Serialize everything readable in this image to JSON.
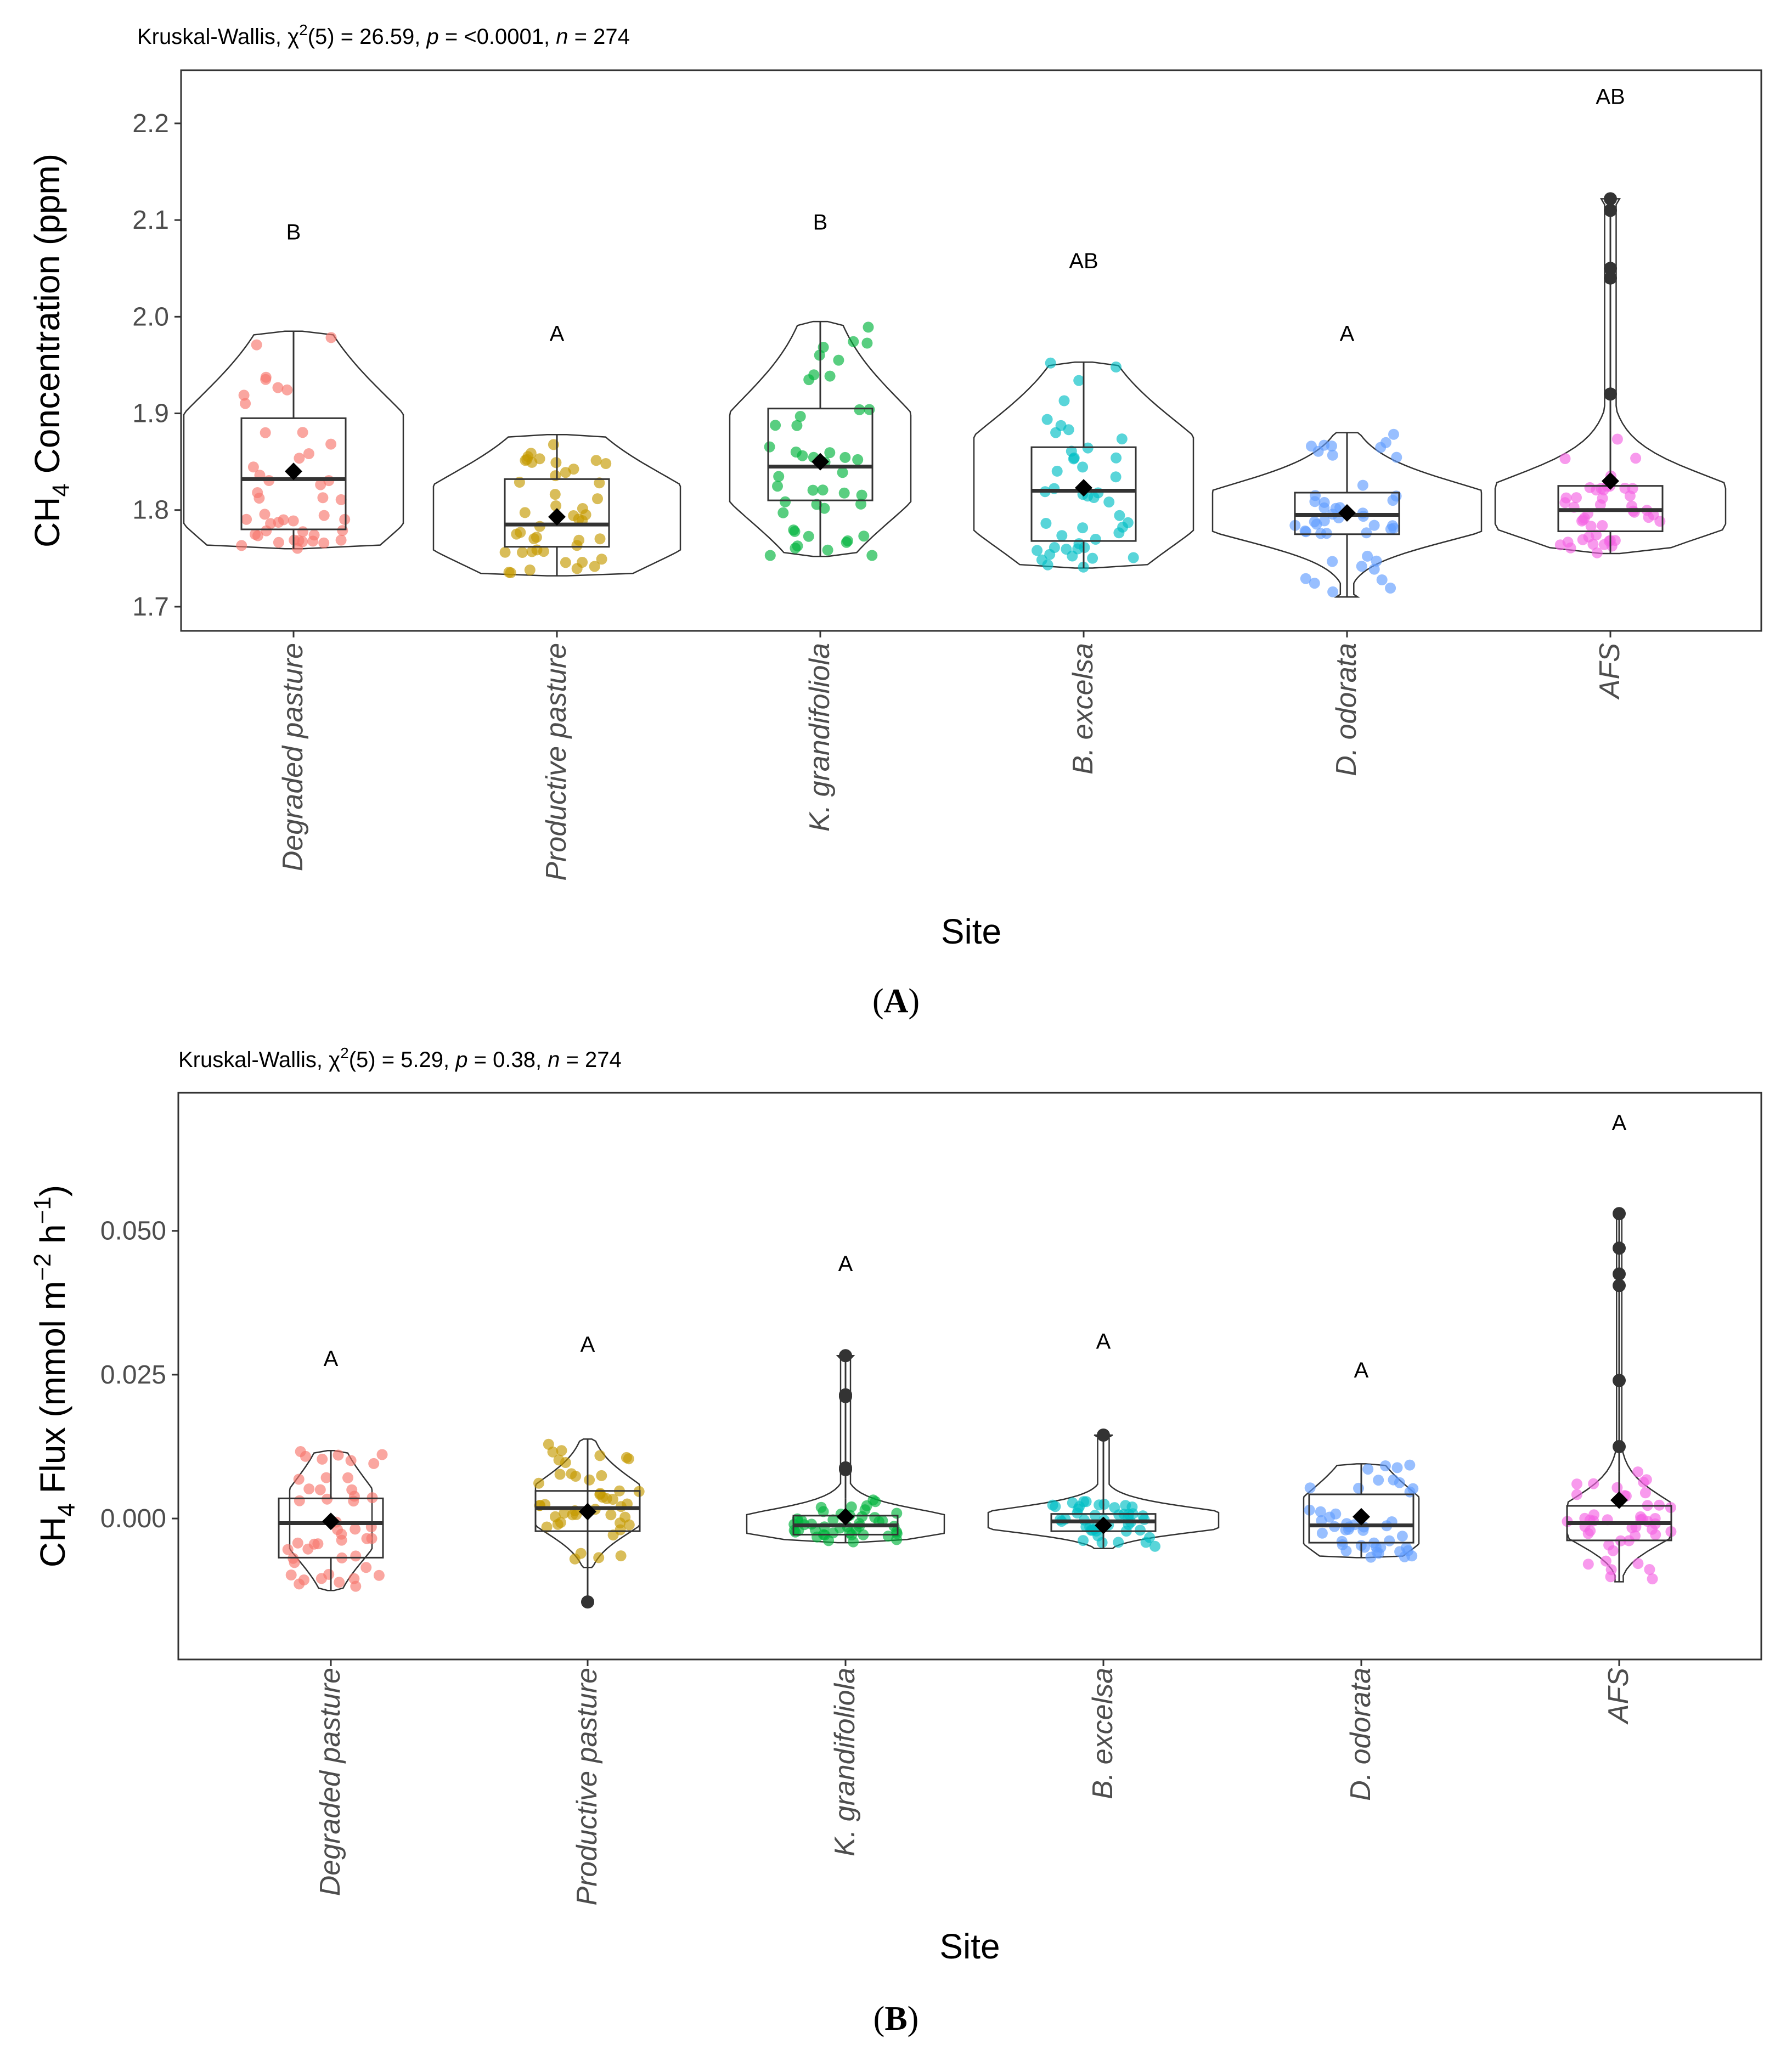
{
  "chart_data": [
    {
      "type": "violin-box",
      "panel_label": "A",
      "stats_line": {
        "prefix": "Kruskal-Wallis, χ",
        "sup": "2",
        "mid": "(5) = 26.59, ",
        "p": "p",
        "p_val": " = <0.0001, ",
        "n": "n",
        "n_val": " = 274"
      },
      "ylabel": {
        "pre": "CH",
        "sub": "4",
        "post": " Concentration (ppm)"
      },
      "xlabel": "Site",
      "ylim": [
        1.675,
        2.255
      ],
      "yticks": [
        1.7,
        1.8,
        1.9,
        2.0,
        2.1,
        2.2
      ],
      "ytick_labels": [
        "1.7",
        "1.8",
        "1.9",
        "2.0",
        "2.1",
        "2.2"
      ],
      "categories": [
        "Degraded pasture",
        "Productive pasture",
        "K. grandifoliola",
        "B. excelsa",
        "D. odorata",
        "AFS"
      ],
      "colors": [
        "#F8766D",
        "#C49A00",
        "#00B33C",
        "#00BFC4",
        "#619CFF",
        "#F564E3"
      ],
      "groups": [
        {
          "letter": "B",
          "letter_y": 2.08,
          "min": 1.76,
          "q1": 1.78,
          "median": 1.832,
          "q3": 1.895,
          "max": 1.985,
          "mean": 1.84,
          "outliers": []
        },
        {
          "letter": "A",
          "letter_y": 1.975,
          "min": 1.732,
          "q1": 1.762,
          "median": 1.785,
          "q3": 1.832,
          "max": 1.878,
          "mean": 1.793,
          "outliers": []
        },
        {
          "letter": "B",
          "letter_y": 2.09,
          "min": 1.752,
          "q1": 1.81,
          "median": 1.845,
          "q3": 1.905,
          "max": 1.995,
          "mean": 1.85,
          "outliers": []
        },
        {
          "letter": "AB",
          "letter_y": 2.05,
          "min": 1.74,
          "q1": 1.768,
          "median": 1.82,
          "q3": 1.865,
          "max": 1.953,
          "mean": 1.823,
          "outliers": []
        },
        {
          "letter": "A",
          "letter_y": 1.975,
          "min": 1.71,
          "q1": 1.775,
          "median": 1.795,
          "q3": 1.818,
          "max": 1.88,
          "mean": 1.797,
          "outliers": []
        },
        {
          "letter": "AB",
          "letter_y": 2.22,
          "min": 1.755,
          "q1": 1.778,
          "median": 1.8,
          "q3": 1.825,
          "max": 1.882,
          "mean": 1.83,
          "outliers": [
            2.122,
            2.11,
            2.05,
            2.04,
            1.92
          ]
        }
      ]
    },
    {
      "type": "violin-box",
      "panel_label": "B",
      "stats_line": {
        "prefix": "Kruskal-Wallis, χ",
        "sup": "2",
        "mid": "(5) = 5.29, ",
        "p": "p",
        "p_val": " = 0.38, ",
        "n": "n",
        "n_val": " = 274"
      },
      "ylabel": {
        "pre": "CH",
        "sub": "4",
        "post": " Flux (mmol m",
        "sup1": "−2",
        "mid": " h",
        "sup2": "−1",
        "end": ")"
      },
      "xlabel": "Site",
      "ylim": [
        -0.0245,
        0.074
      ],
      "yticks": [
        0.0,
        0.025,
        0.05
      ],
      "ytick_labels": [
        "0.000",
        "0.025",
        "0.050"
      ],
      "categories": [
        "Degraded pasture",
        "Productive pasture",
        "K. grandifoliola",
        "B. excelsa",
        "D. odorata",
        "AFS"
      ],
      "colors": [
        "#F8766D",
        "#C49A00",
        "#00B33C",
        "#00BFC4",
        "#619CFF",
        "#F564E3"
      ],
      "groups": [
        {
          "letter": "A",
          "letter_y": 0.0265,
          "min": -0.0125,
          "q1": -0.0068,
          "median": -0.0008,
          "q3": 0.0035,
          "max": 0.0118,
          "mean": -0.0005,
          "outliers": []
        },
        {
          "letter": "A",
          "letter_y": 0.029,
          "min": -0.0085,
          "q1": -0.0022,
          "median": 0.0018,
          "q3": 0.0048,
          "max": 0.0138,
          "mean": 0.0012,
          "outliers": [
            -0.0145
          ]
        },
        {
          "letter": "A",
          "letter_y": 0.043,
          "min": -0.0042,
          "q1": -0.0028,
          "median": -0.0012,
          "q3": 0.0005,
          "max": 0.0035,
          "mean": 0.0003,
          "outliers": [
            0.0283,
            0.0215,
            0.0212,
            0.0088,
            0.0085
          ]
        },
        {
          "letter": "A",
          "letter_y": 0.0295,
          "min": -0.0052,
          "q1": -0.0022,
          "median": -0.0005,
          "q3": 0.0008,
          "max": 0.0032,
          "mean": -0.0012,
          "outliers": [
            0.0145
          ]
        },
        {
          "letter": "A",
          "letter_y": 0.0245,
          "min": -0.0068,
          "q1": -0.0042,
          "median": -0.0012,
          "q3": 0.0042,
          "max": 0.0095,
          "mean": 0.0003,
          "outliers": []
        },
        {
          "letter": "A",
          "letter_y": 0.0675,
          "min": -0.011,
          "q1": -0.0038,
          "median": -0.0008,
          "q3": 0.0022,
          "max": 0.0082,
          "mean": 0.0032,
          "outliers": [
            0.053,
            0.047,
            0.0425,
            0.0405,
            0.024,
            0.0125
          ]
        }
      ]
    }
  ]
}
